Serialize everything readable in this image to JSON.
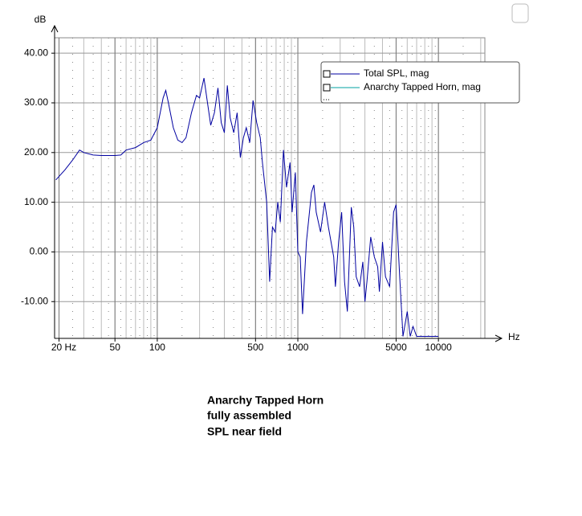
{
  "chart_data": {
    "type": "line",
    "x_label": "Hz",
    "y_label": "dB",
    "log_x": true,
    "grid": true,
    "caption": [
      "Anarchy Tapped Horn",
      "fully assembled",
      "SPL near field"
    ],
    "xlim": [
      18.6,
      21400
    ],
    "ylim": [
      -17.4,
      43.1
    ],
    "xticks": [
      {
        "value": 20,
        "label": "20 Hz"
      },
      50,
      100,
      500,
      1000,
      5000,
      10000
    ],
    "yticks": [
      {
        "value": 40,
        "label": "40.00"
      },
      {
        "value": 30,
        "label": "30.00"
      },
      {
        "value": 20,
        "label": "20.00"
      },
      {
        "value": 10,
        "label": "10.00"
      },
      {
        "value": 0,
        "label": "0.00"
      },
      {
        "value": -10,
        "label": "-10.00"
      }
    ],
    "x": [
      19,
      22,
      25,
      28,
      30,
      35,
      40,
      50,
      55,
      60,
      70,
      80,
      90,
      100,
      110,
      115,
      120,
      130,
      140,
      150,
      160,
      175,
      190,
      200,
      215,
      225,
      240,
      255,
      270,
      285,
      300,
      315,
      330,
      350,
      370,
      390,
      410,
      430,
      455,
      480,
      510,
      540,
      560,
      600,
      630,
      660,
      690,
      720,
      750,
      790,
      830,
      880,
      910,
      960,
      1000,
      1040,
      1080,
      1150,
      1250,
      1300,
      1350,
      1450,
      1550,
      1650,
      1800,
      1850,
      1950,
      2050,
      2150,
      2250,
      2400,
      2500,
      2600,
      2750,
      2900,
      3000,
      3100,
      3300,
      3500,
      3700,
      3800,
      4000,
      4200,
      4500,
      4800,
      5000,
      5300,
      5600,
      6000,
      6300,
      6600,
      7000,
      8000,
      9000,
      10000
    ],
    "series": [
      {
        "name": "Total SPL, mag",
        "color": "#0000a0",
        "values": [
          14.5,
          16.5,
          18.5,
          20.5,
          20,
          19.5,
          19.4,
          19.4,
          19.5,
          20.5,
          21,
          22,
          22.5,
          25,
          31,
          32.5,
          30,
          25,
          22.5,
          22,
          23,
          28,
          31.5,
          31,
          35,
          31,
          25.5,
          28,
          33,
          26,
          24,
          33.5,
          27,
          24,
          28,
          19,
          23,
          25,
          22,
          30.5,
          26,
          23,
          18,
          10,
          -6,
          5,
          4,
          10,
          6,
          20.5,
          13,
          18,
          8,
          16,
          0,
          -1,
          -12.5,
          2,
          12,
          13.5,
          8,
          4,
          10,
          5,
          -1,
          -7,
          2,
          8,
          -6,
          -12,
          9,
          5,
          -5,
          -7,
          -2,
          -10,
          -6,
          3,
          -1,
          -3,
          -8,
          2,
          -5,
          -7,
          8,
          9.5,
          -5,
          -17,
          -12,
          -17,
          -15,
          -17,
          -17,
          -17,
          -17
        ]
      },
      {
        "name": "Anarchy Tapped Horn, mag",
        "color": "#00a0a0"
      }
    ],
    "legend": "top-right"
  }
}
